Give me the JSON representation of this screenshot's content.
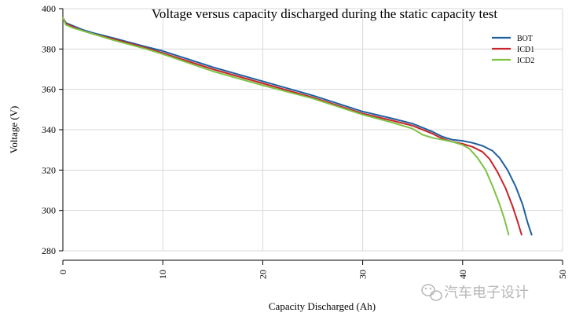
{
  "chart_data": {
    "type": "line",
    "title": "Voltage versus capacity discharged during the static capacity test",
    "xlabel": "Capacity Discharged (Ah)",
    "ylabel": "Voltage (V)",
    "xlim": [
      0,
      50
    ],
    "ylim": [
      280,
      400
    ],
    "xticks": [
      0,
      10,
      20,
      30,
      40,
      50
    ],
    "yticks": [
      280,
      300,
      320,
      340,
      360,
      380,
      400
    ],
    "grid": true,
    "legend_position": "top-right",
    "series": [
      {
        "name": "BOT",
        "color": "#1f5f9e",
        "points": [
          [
            0,
            395.5
          ],
          [
            0.3,
            393
          ],
          [
            1,
            391.5
          ],
          [
            2,
            389.5
          ],
          [
            3,
            388
          ],
          [
            5,
            385.5
          ],
          [
            8,
            381.5
          ],
          [
            10,
            379
          ],
          [
            15,
            371
          ],
          [
            20,
            364
          ],
          [
            25,
            357
          ],
          [
            30,
            349
          ],
          [
            33,
            345.5
          ],
          [
            35,
            343
          ],
          [
            37,
            339
          ],
          [
            38,
            336.5
          ],
          [
            39,
            335
          ],
          [
            40,
            334.5
          ],
          [
            41,
            333.5
          ],
          [
            42,
            332
          ],
          [
            43,
            329.5
          ],
          [
            43.7,
            326
          ],
          [
            44.5,
            320
          ],
          [
            45.3,
            312
          ],
          [
            46,
            303
          ],
          [
            46.5,
            294
          ],
          [
            46.9,
            288
          ]
        ]
      },
      {
        "name": "ICD1",
        "color": "#c8242b",
        "points": [
          [
            0,
            395.5
          ],
          [
            0.3,
            392.5
          ],
          [
            1,
            391
          ],
          [
            2,
            389
          ],
          [
            3,
            387.5
          ],
          [
            5,
            385
          ],
          [
            8,
            381
          ],
          [
            10,
            378
          ],
          [
            15,
            370
          ],
          [
            20,
            363
          ],
          [
            25,
            356
          ],
          [
            30,
            348
          ],
          [
            33,
            344.5
          ],
          [
            35,
            342
          ],
          [
            37,
            338
          ],
          [
            38,
            335.5
          ],
          [
            39,
            334
          ],
          [
            40,
            333
          ],
          [
            41,
            331.5
          ],
          [
            42,
            329
          ],
          [
            42.7,
            325.5
          ],
          [
            43.5,
            319
          ],
          [
            44.3,
            311
          ],
          [
            45,
            302
          ],
          [
            45.5,
            294.5
          ],
          [
            45.9,
            288
          ]
        ]
      },
      {
        "name": "ICD2",
        "color": "#7dc242",
        "points": [
          [
            0,
            395.5
          ],
          [
            0.3,
            392
          ],
          [
            1,
            390.5
          ],
          [
            2,
            389
          ],
          [
            3,
            387.5
          ],
          [
            5,
            384.5
          ],
          [
            8,
            380.5
          ],
          [
            10,
            377.5
          ],
          [
            15,
            369
          ],
          [
            20,
            362
          ],
          [
            25,
            355.5
          ],
          [
            30,
            347.5
          ],
          [
            33,
            343.5
          ],
          [
            35,
            340.5
          ],
          [
            36,
            337.5
          ],
          [
            37,
            336
          ],
          [
            38,
            335
          ],
          [
            39,
            334
          ],
          [
            40,
            332.5
          ],
          [
            40.7,
            330.5
          ],
          [
            41.5,
            326
          ],
          [
            42.3,
            320
          ],
          [
            43,
            312
          ],
          [
            43.7,
            303
          ],
          [
            44.2,
            295.5
          ],
          [
            44.6,
            288
          ]
        ]
      }
    ]
  },
  "watermark": {
    "text": "汽车电子设计",
    "icon": "wechat-icon"
  }
}
